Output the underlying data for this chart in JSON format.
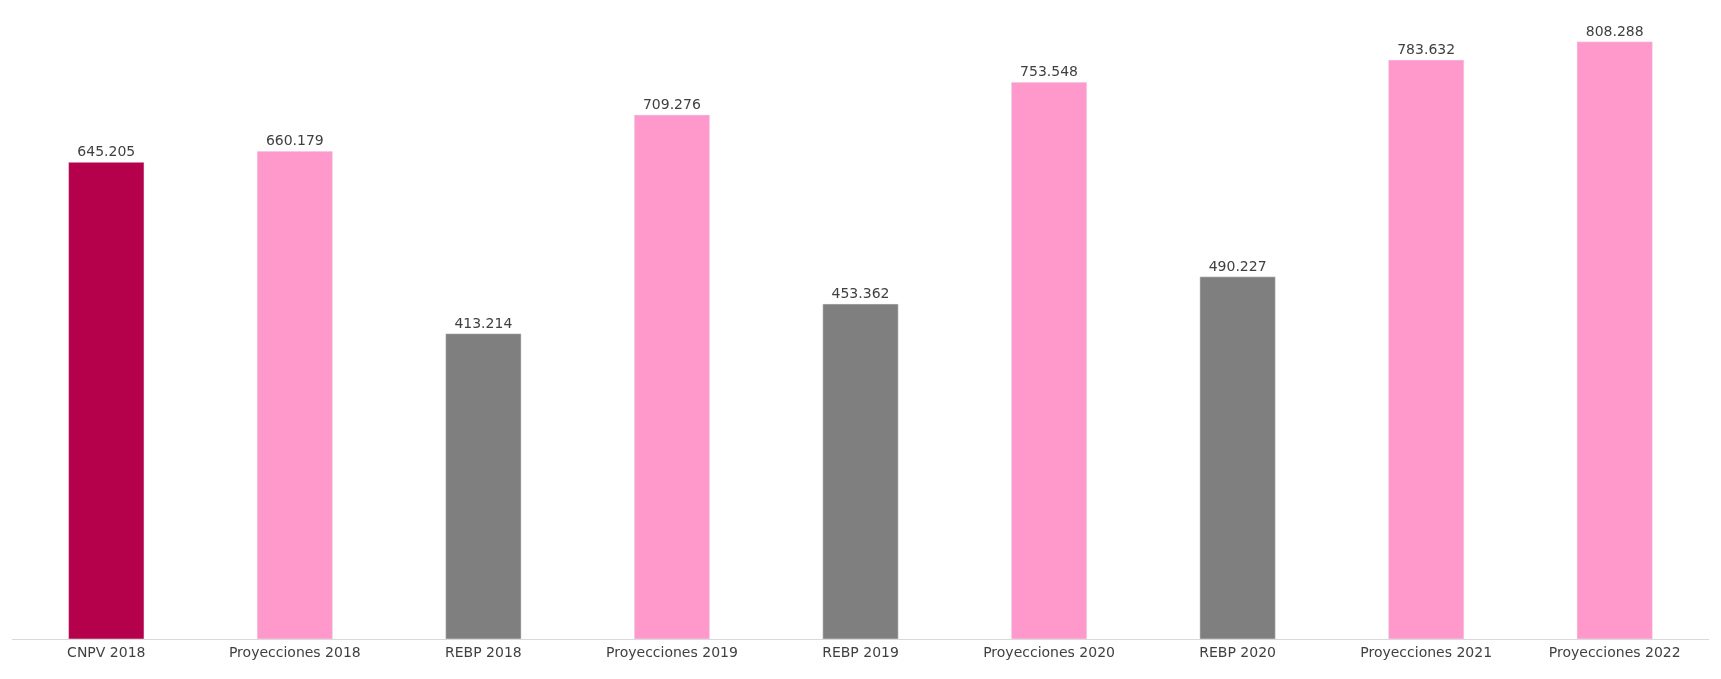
{
  "chart_data": {
    "type": "bar",
    "categories": [
      "CNPV 2018",
      "Proyecciones 2018",
      "REBP 2018",
      "Proyecciones 2019",
      "REBP 2019",
      "Proyecciones 2020",
      "REBP 2020",
      "Proyecciones 2021",
      "Proyecciones 2022"
    ],
    "values": [
      645205,
      660179,
      413214,
      709276,
      453362,
      753548,
      490227,
      783632,
      808288
    ],
    "value_labels": [
      "645.205",
      "660.179",
      "413.214",
      "709.276",
      "453.362",
      "753.548",
      "490.227",
      "783.632",
      "808.288"
    ],
    "colors": [
      "#b5004b",
      "#ff99cc",
      "#7f7f7f",
      "#ff99cc",
      "#7f7f7f",
      "#ff99cc",
      "#7f7f7f",
      "#ff99cc",
      "#ff99cc"
    ],
    "legend": false
  }
}
